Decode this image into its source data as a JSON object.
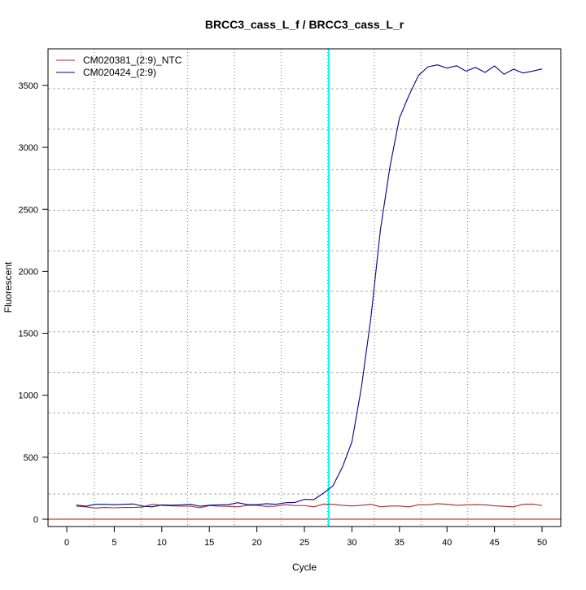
{
  "chart_data": {
    "type": "line",
    "title": "BRCC3_cass_L_f / BRCC3_cass_L_r",
    "xlabel": "Cycle",
    "ylabel": "Fluorescent",
    "xlim": [
      -2,
      52
    ],
    "ylim": [
      -60,
      3795
    ],
    "x_ticks": [
      0,
      5,
      10,
      15,
      20,
      25,
      30,
      35,
      40,
      45,
      50
    ],
    "y_ticks": [
      0,
      500,
      1000,
      1500,
      2000,
      2500,
      3000,
      3500
    ],
    "grid": true,
    "legend_position": "top-left",
    "threshold_cycle": 27.57,
    "threshold_color": "#00ffff",
    "baseline_value": 0,
    "baseline_color": "#cc0000",
    "x": [
      1,
      2,
      3,
      4,
      5,
      6,
      7,
      8,
      9,
      10,
      11,
      12,
      13,
      14,
      15,
      16,
      17,
      18,
      19,
      20,
      21,
      22,
      23,
      24,
      25,
      26,
      27,
      28,
      29,
      30,
      31,
      32,
      33,
      34,
      35,
      36,
      37,
      38,
      39,
      40,
      41,
      42,
      43,
      44,
      45,
      46,
      47,
      48,
      49,
      50
    ],
    "series": [
      {
        "name": "CM020381_(2:9)_NTC",
        "color": "#a52a2a",
        "values": [
          105,
          100,
          90,
          95,
          92,
          95,
          95,
          98,
          120,
          112,
          108,
          105,
          105,
          92,
          110,
          105,
          104,
          100,
          112,
          112,
          103,
          105,
          118,
          110,
          110,
          100,
          122,
          120,
          112,
          107,
          112,
          120,
          100,
          106,
          106,
          100,
          116,
          116,
          125,
          120,
          112,
          115,
          118,
          116,
          108,
          104,
          100,
          120,
          122,
          110
        ]
      },
      {
        "name": "CM020424_(2:9)",
        "color": "#00008b",
        "values": [
          115,
          105,
          120,
          120,
          117,
          120,
          123,
          105,
          100,
          115,
          113,
          115,
          120,
          105,
          113,
          115,
          118,
          133,
          118,
          117,
          125,
          120,
          133,
          135,
          160,
          158,
          210,
          269,
          420,
          624,
          1064,
          1628,
          2337,
          2843,
          3237,
          3420,
          3580,
          3650,
          3666,
          3640,
          3659,
          3615,
          3645,
          3605,
          3657,
          3590,
          3631,
          3600,
          3615,
          3633
        ]
      }
    ]
  }
}
